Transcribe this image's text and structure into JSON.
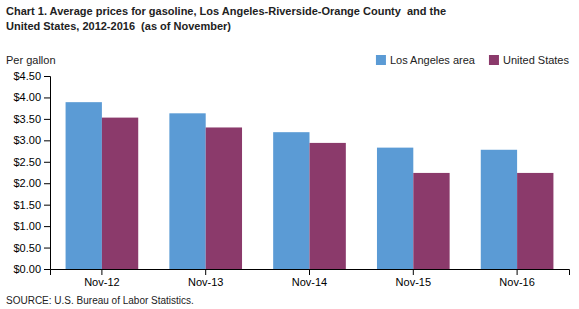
{
  "chart_data": {
    "type": "bar",
    "title": "Chart 1. Average prices for gasoline, Los Angeles-Riverside-Orange County  and the\nUnited States, 2012-2016  (as of November)",
    "ylabel": "Per gallon",
    "annotations": [
      "SOURCE: U.S. Bureau of Labor Statistics."
    ],
    "categories": [
      "Nov-12",
      "Nov-13",
      "Nov-14",
      "Nov-15",
      "Nov-16"
    ],
    "series": [
      {
        "name": "Los Angeles area",
        "color": "#5B9BD5",
        "values": [
          3.89,
          3.63,
          3.19,
          2.83,
          2.78
        ]
      },
      {
        "name": "United States",
        "color": "#8B3A6B",
        "values": [
          3.53,
          3.3,
          2.94,
          2.24,
          2.24
        ]
      }
    ],
    "ylim": [
      0,
      4.5
    ],
    "yticks": [
      {
        "value": 0,
        "label": "$0.00"
      },
      {
        "value": 0.5,
        "label": "$0.50"
      },
      {
        "value": 1,
        "label": "$1.00"
      },
      {
        "value": 1.5,
        "label": "$1.50"
      },
      {
        "value": 2,
        "label": "$2.00"
      },
      {
        "value": 2.5,
        "label": "$2.50"
      },
      {
        "value": 3,
        "label": "$3.00"
      },
      {
        "value": 3.5,
        "label": "$3.50"
      },
      {
        "value": 4,
        "label": "$4.00"
      },
      {
        "value": 4.5,
        "label": "$4.50"
      }
    ],
    "legend": "top-right",
    "grid": false
  }
}
